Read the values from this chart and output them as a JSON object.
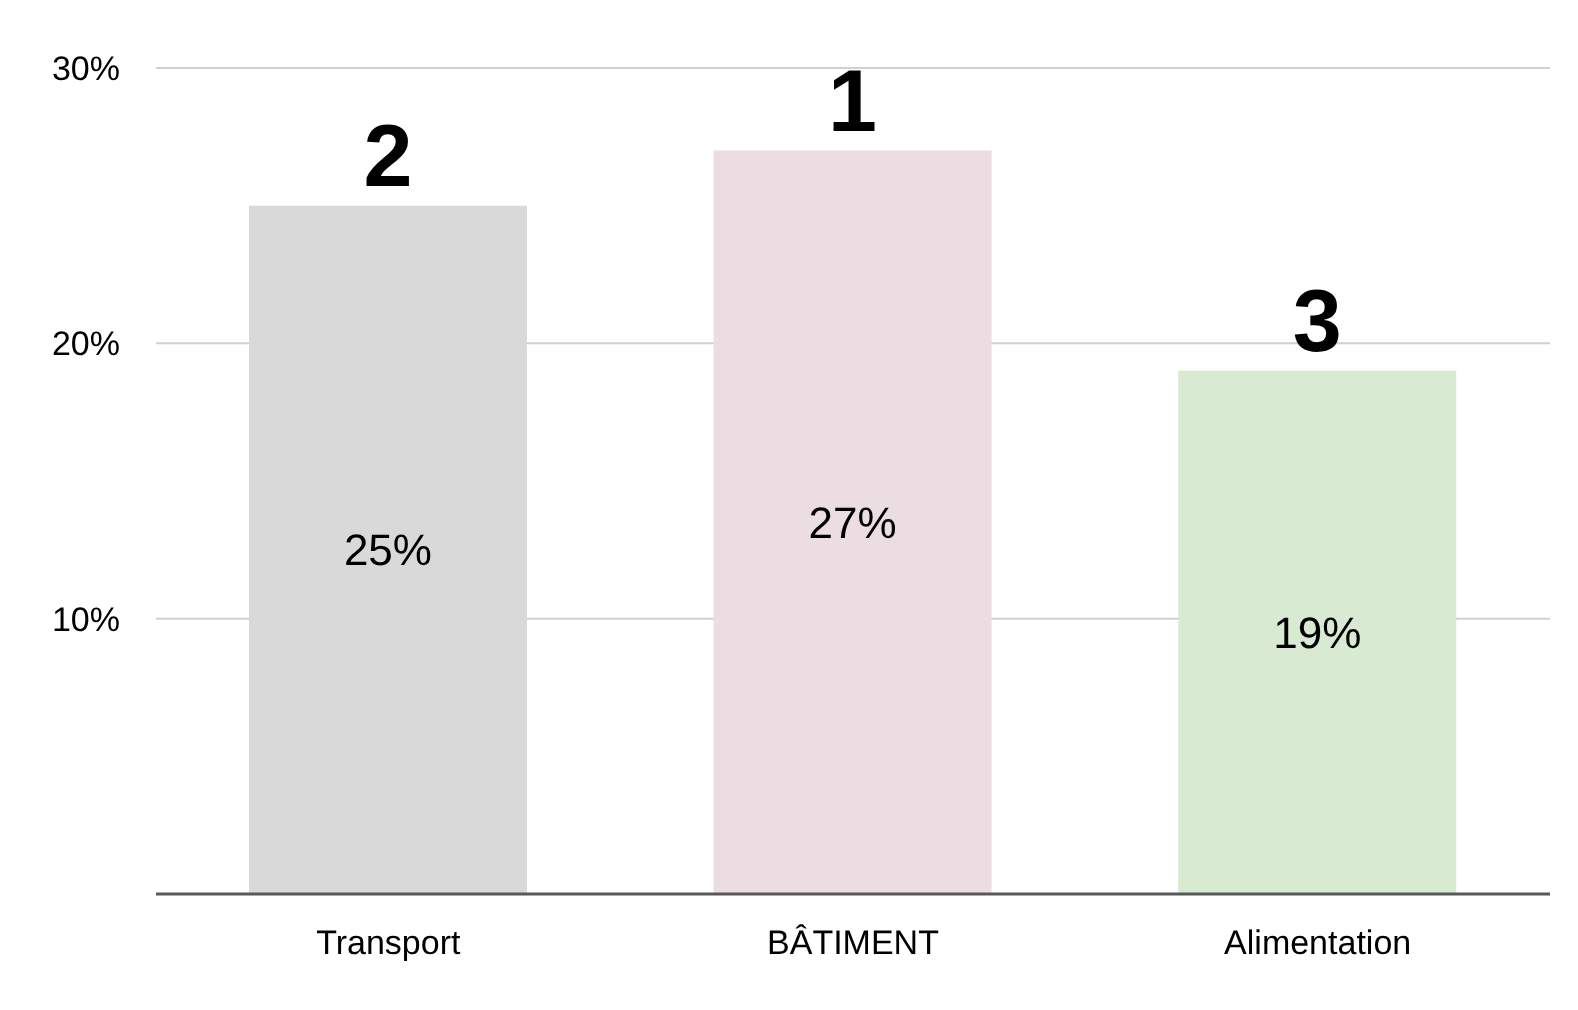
{
  "chart_data": {
    "type": "bar",
    "categories": [
      "Transport",
      "BÂTIMENT",
      "Alimentation"
    ],
    "values": [
      25,
      27,
      19
    ],
    "colors": [
      "#d9d9d9",
      "#ecdde3",
      "#d9ead3"
    ],
    "value_labels": [
      "25%",
      "27%",
      "19%"
    ],
    "annotations": [
      {
        "text": "2",
        "x": "Transport",
        "y": 25
      },
      {
        "text": "1",
        "x": "BÂTIMENT",
        "y": 27
      },
      {
        "text": "3",
        "x": "Alimentation",
        "y": 19
      }
    ],
    "ylim": [
      0,
      30
    ],
    "yticks": [
      {
        "value": 10,
        "label": "10%"
      },
      {
        "value": 20,
        "label": "20%"
      },
      {
        "value": 30,
        "label": "30%"
      }
    ],
    "grid": "y"
  }
}
